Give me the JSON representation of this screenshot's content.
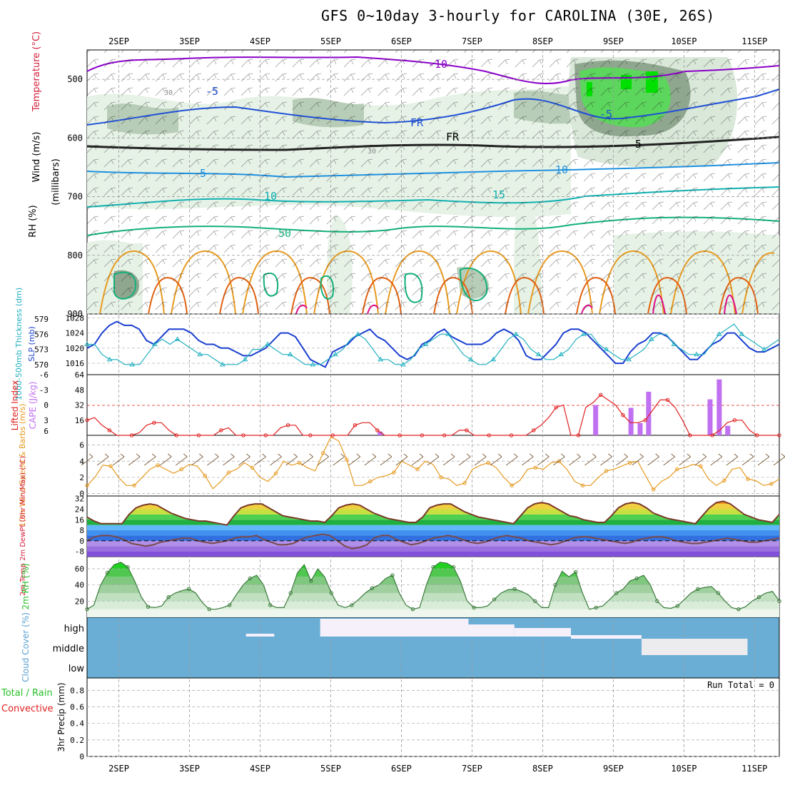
{
  "title": "GFS 0~10day 3-hourly for CAROLINA (30E, 26S)",
  "dates": [
    "2SEP",
    "3SEP",
    "4SEP",
    "5SEP",
    "6SEP",
    "7SEP",
    "8SEP",
    "9SEP",
    "10SEP",
    "11SEP"
  ],
  "run_total_text": "Run Total = 0",
  "colors": {
    "rh_light": "#e6f2e6",
    "rh_mid": "#b8cdb8",
    "rh_dark": "#8fa68f",
    "rh_green": "#5cd65c",
    "rh_bright": "#00e000",
    "temp_purple": "#8a00c8",
    "temp_blue": "#1f4fd6",
    "temp_lightblue": "#1e90e0",
    "temp_teal": "#10b0b0",
    "temp_green": "#12b07a",
    "temp_orange": "#e89a20",
    "temp_darkorange": "#e06010",
    "temp_magenta": "#e0108a",
    "slp": "#1a3fd0",
    "thickness": "#20b0c0",
    "lifted": "#e02020",
    "cape": "#c070f0",
    "wind": "#e69a20",
    "barb": "#7a5a3a",
    "cloud": "#6aaed6",
    "rh2m": "#28c028"
  },
  "chart_data": [
    {
      "panel": "upper-air",
      "type": "heatmap",
      "ylabel_parts": [
        "RH (%)",
        "Temperature (°C)",
        "Wind (m/s)"
      ],
      "y_axis_label": "(millibars)",
      "y_ticks": [
        500,
        600,
        700,
        800,
        900
      ],
      "ylim": [
        900,
        450
      ],
      "contour_labels": [
        "-10",
        "-5",
        "-5",
        "FR",
        "FR",
        "5",
        "5",
        "10",
        "10",
        "15",
        "50",
        "30",
        "30"
      ]
    },
    {
      "panel": "pressure-thickness",
      "type": "line",
      "ylabel_left": "1000-500mb Thickness (dm)",
      "ylabel_right": "SLP (mb)",
      "left_ticks": [
        570,
        573,
        576,
        579
      ],
      "right_ticks": [
        1016,
        1020,
        1024,
        1028
      ],
      "series": [
        {
          "name": "SLP",
          "values": [
            1020,
            1021,
            1024,
            1026,
            1027,
            1026,
            1026,
            1025,
            1022,
            1021,
            1023,
            1025,
            1025,
            1025,
            1024,
            1022,
            1021,
            1021,
            1020,
            1020,
            1019,
            1018,
            1018,
            1019,
            1020,
            1022,
            1024,
            1024,
            1023,
            1020,
            1017,
            1016,
            1015,
            1019,
            1020,
            1021,
            1023,
            1024,
            1025,
            1023,
            1022,
            1020,
            1018,
            1017,
            1018,
            1021,
            1022,
            1024,
            1025,
            1023,
            1022,
            1021,
            1021,
            1021,
            1022,
            1024,
            1025,
            1024,
            1022,
            1018,
            1017,
            1017,
            1019,
            1021,
            1024,
            1025,
            1025,
            1024,
            1022,
            1020,
            1018,
            1016,
            1016,
            1019,
            1021,
            1022,
            1024,
            1024,
            1023,
            1021,
            1019,
            1017,
            1017,
            1019,
            1021,
            1022,
            1024,
            1024,
            1022,
            1020,
            1019,
            1019,
            1020,
            1021
          ]
        },
        {
          "name": "Thickness",
          "values": [
            574,
            574,
            572,
            571,
            571,
            570,
            570,
            570,
            572,
            574,
            575,
            574,
            575,
            574,
            573,
            572,
            572,
            571,
            570,
            570,
            570,
            571,
            573,
            573,
            574,
            573,
            572,
            572,
            571,
            570,
            570,
            570,
            571,
            572,
            573,
            575,
            576,
            575,
            573,
            571,
            571,
            570,
            570,
            571,
            573,
            574,
            575,
            576,
            576,
            574,
            572,
            571,
            570,
            570,
            571,
            573,
            575,
            576,
            575,
            573,
            572,
            571,
            571,
            572,
            573,
            575,
            576,
            576,
            574,
            573,
            572,
            571,
            571,
            572,
            573,
            575,
            576,
            576,
            574,
            573,
            572,
            572,
            572,
            574,
            576,
            577,
            578,
            576,
            575,
            574,
            573,
            574,
            575
          ]
        }
      ]
    },
    {
      "panel": "stability",
      "type": "bar",
      "ylabel_left": "Lifted Index",
      "ylabel_right": "CAPE (J/kg)",
      "left_ticks": [
        "6",
        "3",
        "0",
        "-3",
        "-6"
      ],
      "right_ticks": [
        16,
        32,
        48,
        64
      ],
      "cape_bars": [
        {
          "day": 5.7,
          "value": 4
        },
        {
          "day": 8.75,
          "value": 32
        },
        {
          "day": 9.25,
          "value": 29
        },
        {
          "day": 9.38,
          "value": 13
        },
        {
          "day": 9.5,
          "value": 46
        },
        {
          "day": 10.37,
          "value": 38
        },
        {
          "day": 10.5,
          "value": 59
        },
        {
          "day": 10.62,
          "value": 10
        }
      ],
      "lifted_index": [
        3,
        2.5,
        4,
        5,
        6,
        6,
        6,
        5.5,
        4,
        3.5,
        3.5,
        5,
        6,
        6,
        6,
        6,
        6,
        6,
        5,
        4.5,
        6,
        6,
        6,
        6,
        6,
        6,
        4.5,
        4,
        4,
        6,
        6,
        6,
        6,
        6,
        6,
        6,
        4,
        3.5,
        3.5,
        5,
        6,
        6,
        6,
        6,
        6,
        6,
        6,
        6,
        6,
        6,
        5,
        5,
        6,
        6,
        6,
        6,
        6,
        6,
        6,
        6,
        5,
        4,
        2.5,
        0.5,
        0,
        6,
        6,
        0.5,
        -0.5,
        -2,
        -1,
        0,
        2,
        3.5,
        3.5,
        3,
        1,
        -1,
        -1,
        0.5,
        3,
        6,
        6,
        6,
        6,
        5,
        3.5,
        3,
        3,
        5,
        6,
        6,
        6,
        6
      ]
    },
    {
      "panel": "surface-wind",
      "type": "line",
      "ylabel": "10m Wind Speed & Barbs (m/s)",
      "y_ticks": [
        0,
        2,
        4,
        6
      ],
      "values": [
        1,
        2,
        3.5,
        3.4,
        2,
        1,
        1,
        2,
        3,
        3.5,
        3,
        2.5,
        3,
        3.6,
        3.4,
        2.2,
        0.6,
        1.5,
        2.6,
        3,
        3.8,
        3.2,
        2,
        1.5,
        2.5,
        4,
        3.5,
        3.8,
        3.2,
        2.8,
        5,
        7,
        6.5,
        4.2,
        1,
        1,
        1.5,
        2,
        2.2,
        2.6,
        4,
        3.5,
        3,
        4,
        3.6,
        2,
        1.8,
        1,
        1.3,
        3,
        3.5,
        3.8,
        3.2,
        2,
        1,
        1.6,
        3,
        3.2,
        3,
        3.8,
        4,
        3,
        1.5,
        1,
        1,
        2,
        2.8,
        3,
        3.4,
        3.8,
        4,
        2.2,
        0.5,
        1.5,
        2,
        3,
        3.2,
        3.6,
        3.4,
        1.8,
        1,
        1.6,
        3,
        3.2,
        1.8,
        1.6,
        1,
        1.2,
        1.8
      ]
    },
    {
      "panel": "temperature",
      "type": "area",
      "ylabel": "2m Temp 2m DewPt (6hr Min/Max) (°C)",
      "y_ticks": [
        -8,
        0,
        8,
        16,
        24,
        32
      ],
      "temp": [
        18,
        15,
        13,
        13,
        13,
        13,
        20,
        25,
        27,
        28,
        27,
        24,
        21,
        19,
        17,
        16,
        15,
        15,
        14,
        13,
        12,
        19,
        25,
        27,
        28,
        28,
        25,
        22,
        19,
        18,
        17,
        16,
        15,
        15,
        14,
        19,
        25,
        27,
        28,
        27,
        24,
        21,
        19,
        17,
        16,
        15,
        14,
        14,
        18,
        25,
        27,
        28,
        28,
        25,
        22,
        20,
        18,
        17,
        16,
        15,
        14,
        13,
        19,
        25,
        28,
        29,
        28,
        25,
        22,
        19,
        18,
        16,
        15,
        14,
        14,
        19,
        25,
        28,
        29,
        28,
        25,
        21,
        19,
        17,
        16,
        15,
        14,
        13,
        19,
        25,
        29,
        30,
        28,
        24,
        20,
        18,
        16,
        15,
        14,
        20
      ],
      "dewpoint": [
        0,
        3,
        4,
        4,
        3,
        1,
        -2,
        -3,
        -4,
        -3,
        -1,
        0,
        1,
        2,
        2,
        0,
        -1,
        -2,
        -1,
        0,
        2,
        3,
        3,
        4,
        1,
        -1,
        -3,
        -3,
        -2,
        1,
        3,
        4,
        5,
        4,
        0,
        -4,
        -6,
        -5,
        -3,
        2,
        4,
        4,
        1,
        -1,
        -3,
        -2,
        0,
        2,
        3,
        4,
        3,
        1,
        -1,
        -2,
        -1,
        1,
        3,
        4,
        3,
        2,
        0,
        -1,
        -2,
        -3,
        -2,
        0,
        2,
        3,
        3,
        2,
        1,
        0,
        -1,
        -2,
        -1,
        1,
        2,
        3,
        3,
        2,
        0,
        -1,
        -2,
        -2,
        -1,
        0,
        1,
        2,
        1,
        0,
        -1,
        -1,
        0,
        1,
        2
      ]
    },
    {
      "panel": "surface-rh",
      "type": "area",
      "ylabel": "2m RH (%)",
      "y_ticks": [
        20,
        40,
        60
      ],
      "values": [
        10,
        15,
        40,
        55,
        65,
        68,
        62,
        45,
        25,
        13,
        12,
        14,
        25,
        30,
        33,
        35,
        30,
        18,
        10,
        10,
        12,
        15,
        28,
        40,
        48,
        52,
        40,
        15,
        12,
        12,
        30,
        55,
        65,
        45,
        60,
        50,
        30,
        15,
        12,
        15,
        22,
        30,
        36,
        40,
        48,
        52,
        30,
        15,
        10,
        12,
        40,
        62,
        68,
        67,
        62,
        45,
        20,
        12,
        12,
        14,
        22,
        30,
        34,
        35,
        32,
        28,
        20,
        12,
        12,
        40,
        57,
        50,
        56,
        30,
        10,
        12,
        14,
        22,
        30,
        35,
        45,
        48,
        52,
        40,
        20,
        12,
        11,
        14,
        22,
        30,
        35,
        37,
        38,
        30,
        20,
        12,
        10,
        13,
        20,
        25,
        30,
        32,
        20
      ]
    },
    {
      "panel": "cloud-cover",
      "type": "bar",
      "ylabel": "Cloud Cover (%)",
      "levels": [
        "high",
        "middle",
        "low"
      ]
    },
    {
      "panel": "precipitation",
      "type": "bar",
      "ylabel_left": "Total / Rain",
      "ylabel_left2": "Convective",
      "ylabel_right": "3hr Precip (mm)",
      "y_ticks": [
        "0",
        "0.2",
        "0.4",
        "0.6",
        "0.8"
      ],
      "values": []
    }
  ]
}
